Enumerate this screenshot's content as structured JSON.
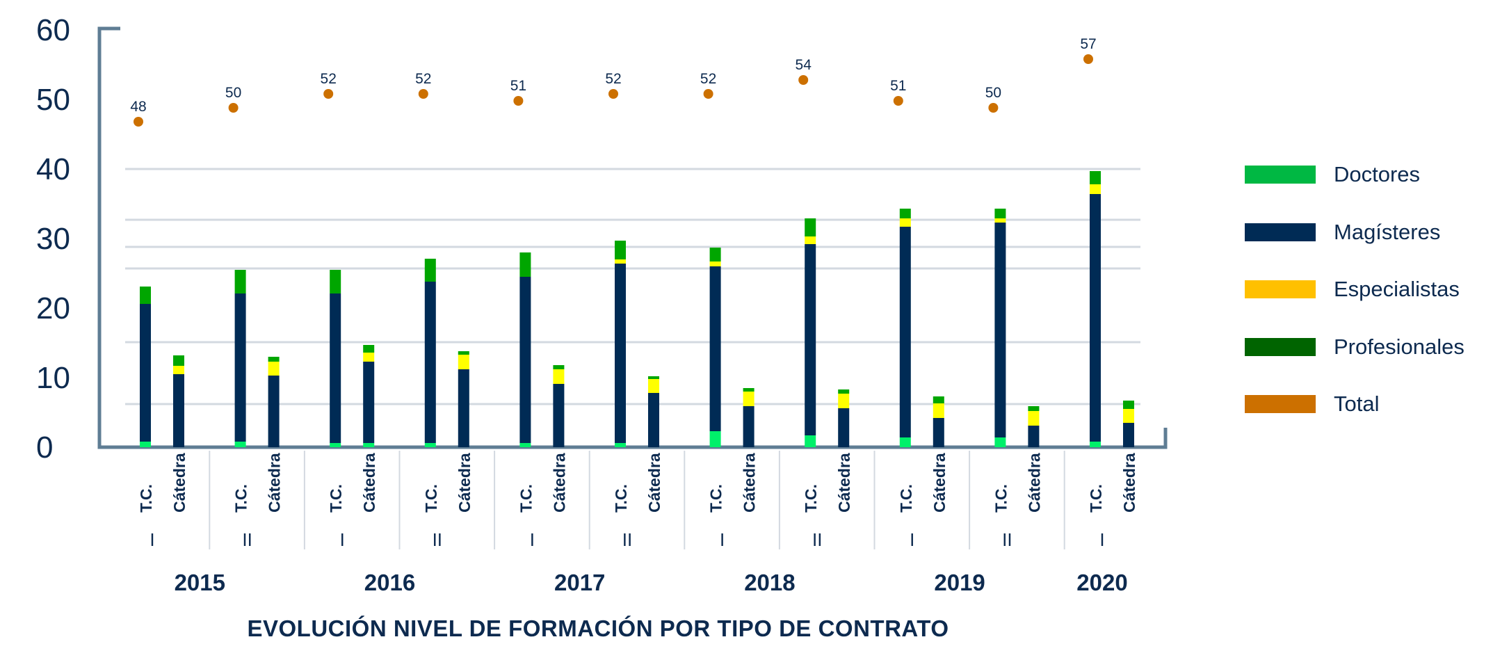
{
  "chart_data": {
    "type": "bar",
    "stacked": true,
    "title": "EVOLUCIÓN NIVEL DE FORMACIÓN POR TIPO DE CONTRATO",
    "xlabel": "",
    "ylabel": "",
    "ylim": [
      0,
      60
    ],
    "yticks": [
      "0",
      "10",
      "20",
      "30",
      "40",
      "50",
      "60"
    ],
    "grid": false,
    "legend_position": "right",
    "contract_labels": [
      "T.C.",
      "Cátedra"
    ],
    "periods": [
      {
        "year": "2015",
        "semester": "I",
        "total": "48"
      },
      {
        "year": "2015",
        "semester": "II",
        "total": "50"
      },
      {
        "year": "2016",
        "semester": "I",
        "total": "52"
      },
      {
        "year": "2016",
        "semester": "II",
        "total": "52"
      },
      {
        "year": "2017",
        "semester": "I",
        "total": "51"
      },
      {
        "year": "2017",
        "semester": "II",
        "total": "52"
      },
      {
        "year": "2018",
        "semester": "I",
        "total": "52"
      },
      {
        "year": "2018",
        "semester": "II",
        "total": "54"
      },
      {
        "year": "2019",
        "semester": "I",
        "total": "51"
      },
      {
        "year": "2019",
        "semester": "II",
        "total": "50"
      },
      {
        "year": "2020",
        "semester": "I",
        "total": "57"
      }
    ],
    "years": [
      "2015",
      "2016",
      "2017",
      "2018",
      "2019",
      "2020"
    ],
    "series": [
      {
        "name": "Doctores",
        "color": "#00b843",
        "bar_color": "#00f06a",
        "tc": [
          0.8,
          0.8,
          0.6,
          0.6,
          0.6,
          0.6,
          2.3,
          1.7,
          1.4,
          1.4,
          0.8
        ],
        "catedra": [
          0,
          0,
          0.6,
          0,
          0,
          0,
          0,
          0,
          0,
          0,
          0
        ]
      },
      {
        "name": "Magísteres",
        "color": "#002b55",
        "bar_color": "#002b55",
        "tc": [
          19.8,
          21.3,
          21.5,
          23.2,
          23.9,
          25.8,
          23.7,
          27.5,
          30.3,
          30.9,
          35.6
        ],
        "catedra": [
          10.5,
          10.3,
          11.7,
          11.2,
          9.1,
          7.8,
          5.9,
          5.6,
          4.2,
          3.1,
          3.5
        ]
      },
      {
        "name": "Especialistas",
        "color": "#ffc000",
        "bar_color": "#ffff00",
        "tc": [
          0,
          0,
          0,
          0,
          0,
          0.6,
          0.7,
          1.1,
          1.2,
          0.6,
          1.4
        ],
        "catedra": [
          1.2,
          2.0,
          1.3,
          2.1,
          2.1,
          2.0,
          2.1,
          2.1,
          2.1,
          2.1,
          2.0
        ]
      },
      {
        "name": "Profesionales",
        "color": "#006400",
        "bar_color": "#00a600",
        "tc": [
          2.5,
          3.4,
          3.4,
          3.3,
          3.5,
          2.7,
          2.0,
          2.6,
          1.4,
          1.4,
          1.9
        ],
        "catedra": [
          1.5,
          0.7,
          1.1,
          0.5,
          0.6,
          0.4,
          0.5,
          0.6,
          1.0,
          0.7,
          1.2
        ]
      },
      {
        "name": "Total",
        "color": "#cc7000"
      }
    ],
    "reference_lines": [
      40,
      32.7,
      28.8,
      25.7,
      15.1,
      6.2
    ]
  }
}
